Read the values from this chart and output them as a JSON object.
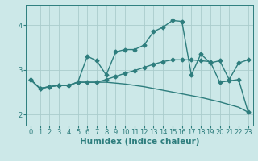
{
  "xlabel": "Humidex (Indice chaleur)",
  "bg_color": "#cce8e8",
  "line_color": "#2d7d7d",
  "grid_color": "#aacccc",
  "xlim": [
    -0.5,
    23.5
  ],
  "ylim": [
    1.75,
    4.45
  ],
  "yticks": [
    2,
    3,
    4
  ],
  "xticks": [
    0,
    1,
    2,
    3,
    4,
    5,
    6,
    7,
    8,
    9,
    10,
    11,
    12,
    13,
    14,
    15,
    16,
    17,
    18,
    19,
    20,
    21,
    22,
    23
  ],
  "s1_x": [
    0,
    1,
    2,
    3,
    4,
    5,
    6,
    7,
    8,
    9,
    10,
    11,
    12,
    13,
    14,
    15,
    16,
    17,
    18,
    19,
    20,
    21,
    22,
    23
  ],
  "s1_y": [
    2.78,
    2.58,
    2.62,
    2.65,
    2.65,
    2.72,
    3.3,
    3.2,
    2.88,
    3.4,
    3.45,
    3.45,
    3.55,
    3.85,
    3.95,
    4.1,
    4.08,
    2.88,
    3.35,
    3.15,
    3.2,
    2.78,
    3.15,
    3.22
  ],
  "s2_x": [
    0,
    1,
    2,
    3,
    4,
    5,
    6,
    7,
    8,
    9,
    10,
    11,
    12,
    13,
    14,
    15,
    16,
    17,
    18,
    19,
    20,
    21,
    22,
    23
  ],
  "s2_y": [
    2.78,
    2.58,
    2.62,
    2.65,
    2.65,
    2.72,
    2.72,
    2.72,
    2.78,
    2.85,
    2.92,
    2.98,
    3.05,
    3.12,
    3.18,
    3.22,
    3.22,
    3.22,
    3.2,
    3.18,
    2.72,
    2.75,
    2.78,
    2.05
  ],
  "s3_x": [
    0,
    1,
    2,
    3,
    4,
    5,
    6,
    7,
    8,
    9,
    10,
    11,
    12,
    13,
    14,
    15,
    16,
    17,
    18,
    19,
    20,
    21,
    22,
    23
  ],
  "s3_y": [
    2.78,
    2.58,
    2.62,
    2.65,
    2.65,
    2.72,
    2.72,
    2.72,
    2.72,
    2.7,
    2.68,
    2.65,
    2.62,
    2.58,
    2.54,
    2.5,
    2.46,
    2.42,
    2.38,
    2.33,
    2.28,
    2.22,
    2.16,
    2.05
  ],
  "marker": "D",
  "marker_size": 2.5,
  "linewidth": 1.0,
  "tick_fontsize": 6,
  "label_fontsize": 7.5
}
